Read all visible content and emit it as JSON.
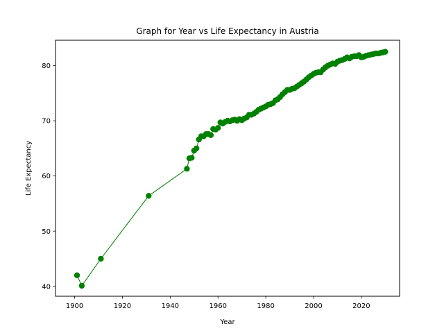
{
  "chart_data": {
    "type": "line",
    "title": "Graph for Year vs Life Expectancy in Austria",
    "xlabel": "Year",
    "ylabel": "Life Expectancy",
    "xlim": [
      1892,
      2036
    ],
    "ylim": [
      38.2,
      84.6
    ],
    "xticks": [
      1900,
      1920,
      1940,
      1960,
      1980,
      2000,
      2020
    ],
    "yticks": [
      40,
      50,
      60,
      70,
      80
    ],
    "grid": false,
    "color": "#008000",
    "series": [
      {
        "x": [
          1901,
          1903,
          1911,
          1931,
          1947,
          1948,
          1949,
          1950,
          1951,
          1952,
          1953,
          1954,
          1955,
          1956,
          1957,
          1958,
          1959,
          1960,
          1961,
          1962,
          1963,
          1964,
          1965,
          1966,
          1967,
          1968,
          1969,
          1970,
          1971,
          1972,
          1973,
          1974,
          1975,
          1976,
          1977,
          1978,
          1979,
          1980,
          1981,
          1982,
          1983,
          1984,
          1985,
          1986,
          1987,
          1988,
          1989,
          1990,
          1991,
          1992,
          1993,
          1994,
          1995,
          1996,
          1997,
          1998,
          1999,
          2000,
          2001,
          2002,
          2003,
          2004,
          2005,
          2006,
          2007,
          2008,
          2009,
          2010,
          2011,
          2012,
          2013,
          2014,
          2015,
          2016,
          2017,
          2018,
          2019,
          2020,
          2021,
          2022,
          2023,
          2024,
          2025,
          2026,
          2027,
          2028,
          2029,
          2030
        ],
        "y": [
          42.0,
          40.1,
          45.0,
          56.4,
          61.3,
          63.2,
          63.3,
          64.6,
          65.0,
          66.6,
          67.2,
          67.2,
          67.6,
          67.6,
          67.4,
          68.5,
          68.4,
          68.7,
          69.7,
          69.5,
          69.8,
          70.0,
          69.9,
          70.1,
          70.2,
          70.0,
          70.3,
          70.1,
          70.4,
          70.6,
          71.1,
          71.1,
          71.3,
          71.6,
          72.0,
          72.2,
          72.4,
          72.6,
          72.9,
          73.0,
          73.2,
          73.7,
          73.9,
          74.3,
          74.8,
          75.2,
          75.6,
          75.6,
          75.8,
          75.9,
          76.2,
          76.5,
          76.8,
          77.1,
          77.5,
          77.9,
          78.2,
          78.5,
          78.7,
          78.8,
          78.8,
          79.3,
          79.7,
          80.0,
          80.2,
          80.4,
          80.3,
          80.7,
          80.9,
          81.0,
          81.2,
          81.5,
          81.3,
          81.6,
          81.7,
          81.7,
          81.9,
          81.5,
          81.6,
          81.8,
          81.9,
          82.0,
          82.1,
          82.2,
          82.2,
          82.3,
          82.4,
          82.5
        ]
      }
    ]
  }
}
